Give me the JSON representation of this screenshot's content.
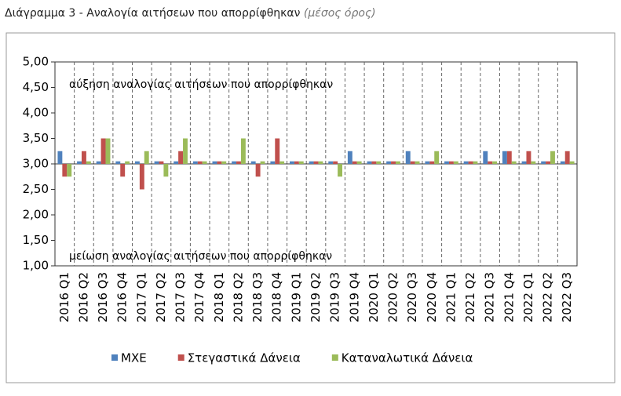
{
  "chart_data": {
    "type": "bar",
    "title": "Διάγραμμα 3 - Αναλογία αιτήσεων που απορρίφθηκαν",
    "subtitle": "(μέσος όρος)",
    "annotations": [
      "αύξηση αναλογίας αιτήσεων που απορρίφθηκαν",
      "μείωση αναλογίας αιτήσεων που απορρίφθηκαν"
    ],
    "categories": [
      "2016 Q1",
      "2016 Q2",
      "2016 Q3",
      "2016 Q4",
      "2017 Q1",
      "2017 Q2",
      "2017 Q3",
      "2017 Q4",
      "2018 Q1",
      "2018 Q2",
      "2018 Q3",
      "2018 Q4",
      "2019 Q1",
      "2019 Q2",
      "2019 Q3",
      "2019 Q4",
      "2020 Q1",
      "2020 Q2",
      "2020 Q3",
      "2020 Q4",
      "2021 Q1",
      "2021 Q2",
      "2021 Q3",
      "2021 Q4",
      "2022 Q1",
      "2022 Q2",
      "2022 Q3"
    ],
    "series": [
      {
        "name": "ΜΧΕ",
        "color": "#4f81bd",
        "values": [
          3.25,
          3.05,
          3.05,
          3.05,
          3.05,
          3.05,
          3.05,
          3.05,
          3.05,
          3.05,
          3.05,
          3.05,
          3.05,
          3.05,
          3.05,
          3.25,
          3.05,
          3.05,
          3.25,
          3.05,
          3.05,
          3.05,
          3.25,
          3.25,
          3.05,
          3.05,
          3.05
        ]
      },
      {
        "name": "Στεγαστικά Δάνεια",
        "color": "#c0504d",
        "values": [
          2.75,
          3.25,
          3.5,
          2.75,
          2.5,
          3.05,
          3.25,
          3.05,
          3.05,
          3.05,
          2.75,
          3.5,
          3.05,
          3.05,
          3.05,
          3.05,
          3.05,
          3.05,
          3.05,
          3.05,
          3.05,
          3.05,
          3.05,
          3.25,
          3.25,
          3.05,
          3.25
        ]
      },
      {
        "name": "Καταναλωτικά Δάνεια",
        "color": "#9bbb59",
        "values": [
          2.75,
          3.05,
          3.5,
          3.05,
          3.25,
          2.75,
          3.5,
          3.05,
          3.05,
          3.5,
          3.05,
          3.05,
          3.05,
          3.05,
          2.75,
          3.05,
          3.05,
          3.05,
          3.05,
          3.25,
          3.05,
          3.05,
          3.05,
          3.05,
          3.05,
          3.25,
          3.05
        ]
      }
    ],
    "ylim": [
      1,
      5
    ],
    "yticks": [
      {
        "value": 1,
        "label": "1,00"
      },
      {
        "value": 1.5,
        "label": "1,50"
      },
      {
        "value": 2,
        "label": "2,00"
      },
      {
        "value": 2.5,
        "label": "2,50"
      },
      {
        "value": 3,
        "label": "3,00"
      },
      {
        "value": 3.5,
        "label": "3,50"
      },
      {
        "value": 4,
        "label": "4,00"
      },
      {
        "value": 4.5,
        "label": "4,50"
      },
      {
        "value": 5,
        "label": "5,00"
      }
    ],
    "y_axis_crossing": 3,
    "grid": true,
    "legend": "bottom"
  }
}
